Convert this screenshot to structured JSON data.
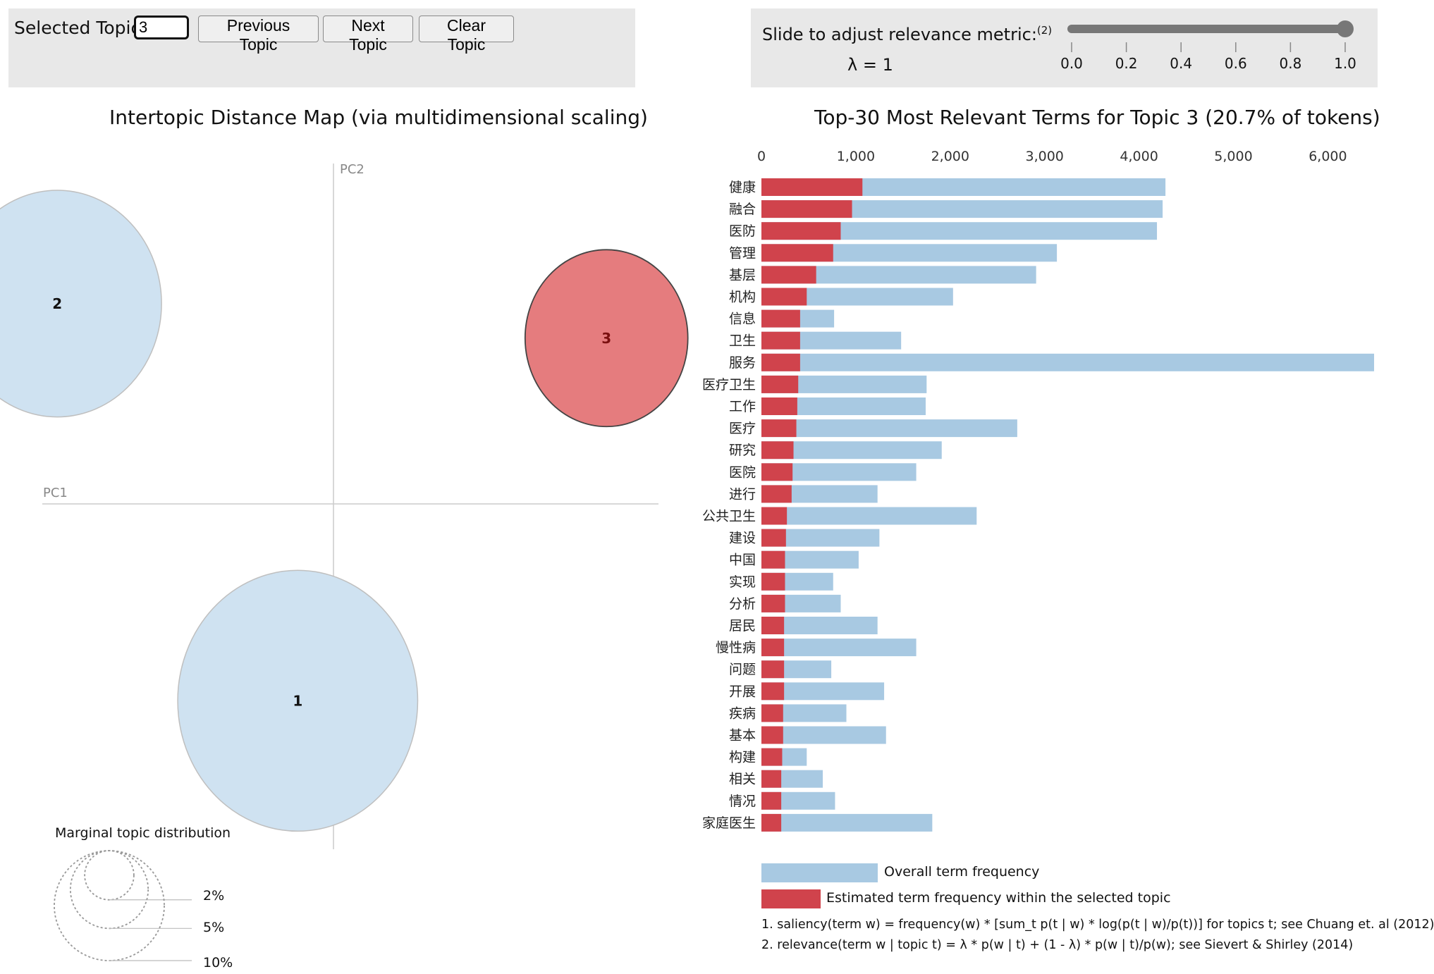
{
  "controls": {
    "selected_topic_label": "Selected Topic:",
    "selected_topic_value": "3",
    "previous_label": "Previous Topic",
    "next_label": "Next Topic",
    "clear_label": "Clear Topic"
  },
  "slider": {
    "label": "Slide to adjust relevance metric:",
    "footnote_ref": "(2)",
    "lambda_text": "λ = 1",
    "lambda_value": 1.0,
    "ticks": [
      "0.0",
      "0.2",
      "0.4",
      "0.6",
      "0.8",
      "1.0"
    ]
  },
  "colors": {
    "overall": "#a8c9e2",
    "estimated": "#d0434c",
    "topic_circle": "#cfe2f1",
    "selected_circle": "#e57c7e"
  },
  "chart_data": [
    {
      "type": "scatter",
      "title": "Intertopic Distance Map (via multidimensional scaling)",
      "xlabel": "PC1",
      "ylabel": "PC2",
      "xlim": [
        -1,
        1
      ],
      "ylim": [
        -1,
        1
      ],
      "topics": [
        {
          "id": "1",
          "x": -0.11,
          "y": -0.57,
          "size_pct": 45,
          "selected": false
        },
        {
          "id": "2",
          "x": -0.85,
          "y": 0.58,
          "size_pct": 34,
          "selected": false
        },
        {
          "id": "3",
          "x": 0.84,
          "y": 0.48,
          "size_pct": 20.7,
          "selected": true
        }
      ],
      "marginal": {
        "title": "Marginal topic distribution",
        "levels": [
          {
            "label": "2%",
            "pct": 2
          },
          {
            "label": "5%",
            "pct": 5
          },
          {
            "label": "10%",
            "pct": 10
          }
        ]
      }
    },
    {
      "type": "bar",
      "title": "Top-30 Most Relevant Terms for Topic 3 (20.7% of tokens)",
      "xlim": [
        0,
        6500
      ],
      "xticks": [
        "0",
        "1,000",
        "2,000",
        "3,000",
        "4,000",
        "5,000",
        "6,000"
      ],
      "xtick_values": [
        0,
        1000,
        2000,
        3000,
        4000,
        5000,
        6000
      ],
      "categories": [
        "健康",
        "融合",
        "医防",
        "管理",
        "基层",
        "机构",
        "信息",
        "卫生",
        "服务",
        "医疗卫生",
        "工作",
        "医疗",
        "研究",
        "医院",
        "进行",
        "公共卫生",
        "建设",
        "中国",
        "实现",
        "分析",
        "居民",
        "慢性病",
        "问题",
        "开展",
        "疾病",
        "基本",
        "构建",
        "相关",
        "情况",
        "家庭医生"
      ],
      "series": [
        {
          "name": "Overall term frequency",
          "values": [
            4280,
            4250,
            4190,
            3130,
            2910,
            2030,
            770,
            1480,
            6490,
            1750,
            1740,
            2710,
            1910,
            1640,
            1230,
            2280,
            1250,
            1030,
            760,
            840,
            1230,
            1640,
            740,
            1300,
            900,
            1320,
            480,
            650,
            780,
            1810
          ]
        },
        {
          "name": "Estimated term frequency within the selected topic",
          "values": [
            1070,
            960,
            840,
            760,
            580,
            480,
            410,
            410,
            410,
            390,
            380,
            370,
            340,
            330,
            320,
            270,
            260,
            250,
            250,
            250,
            240,
            240,
            240,
            240,
            230,
            230,
            220,
            210,
            210,
            210
          ]
        }
      ],
      "legend": [
        "Overall term frequency",
        "Estimated term frequency within the selected topic"
      ]
    }
  ],
  "footnotes": [
    "1. saliency(term w) = frequency(w) * [sum_t p(t | w) * log(p(t | w)/p(t))] for topics t; see Chuang et. al (2012)",
    "2. relevance(term w | topic t) = λ * p(w | t) + (1 - λ) * p(w | t)/p(w); see Sievert & Shirley (2014)"
  ]
}
